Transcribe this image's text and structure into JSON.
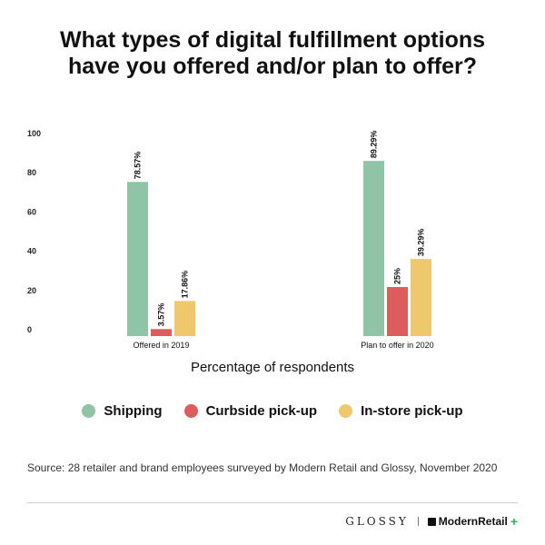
{
  "title": {
    "line1": "What types of digital fulfillment options",
    "line2": "have you offered and/or plan to offer?"
  },
  "chart_data": {
    "type": "bar",
    "categories": [
      "Offered in 2019",
      "Plan to offer in 2020"
    ],
    "series": [
      {
        "name": "Shipping",
        "color": "#8fc4a6",
        "values": [
          78.57,
          89.29
        ],
        "labels": [
          "78.57%",
          "89.29%"
        ]
      },
      {
        "name": "Curbside pick-up",
        "color": "#dd5c5c",
        "values": [
          3.57,
          25
        ],
        "labels": [
          "3.57%",
          "25%"
        ]
      },
      {
        "name": "In-store pick-up",
        "color": "#efc76c",
        "values": [
          17.86,
          39.29
        ],
        "labels": [
          "17.86%",
          "39.29%"
        ]
      }
    ],
    "ylim": [
      0,
      100
    ],
    "yticks": [
      0,
      20,
      40,
      60,
      80,
      100
    ],
    "xlabel": "Percentage of respondents",
    "ylabel": "",
    "grid": false,
    "legend_position": "bottom"
  },
  "source": "Source: 28 retailer and brand employees surveyed by Modern Retail and Glossy, November 2020",
  "footer": {
    "glossy": "GLOSSY",
    "modern_retail": "ModernRetail",
    "plus": "+"
  }
}
